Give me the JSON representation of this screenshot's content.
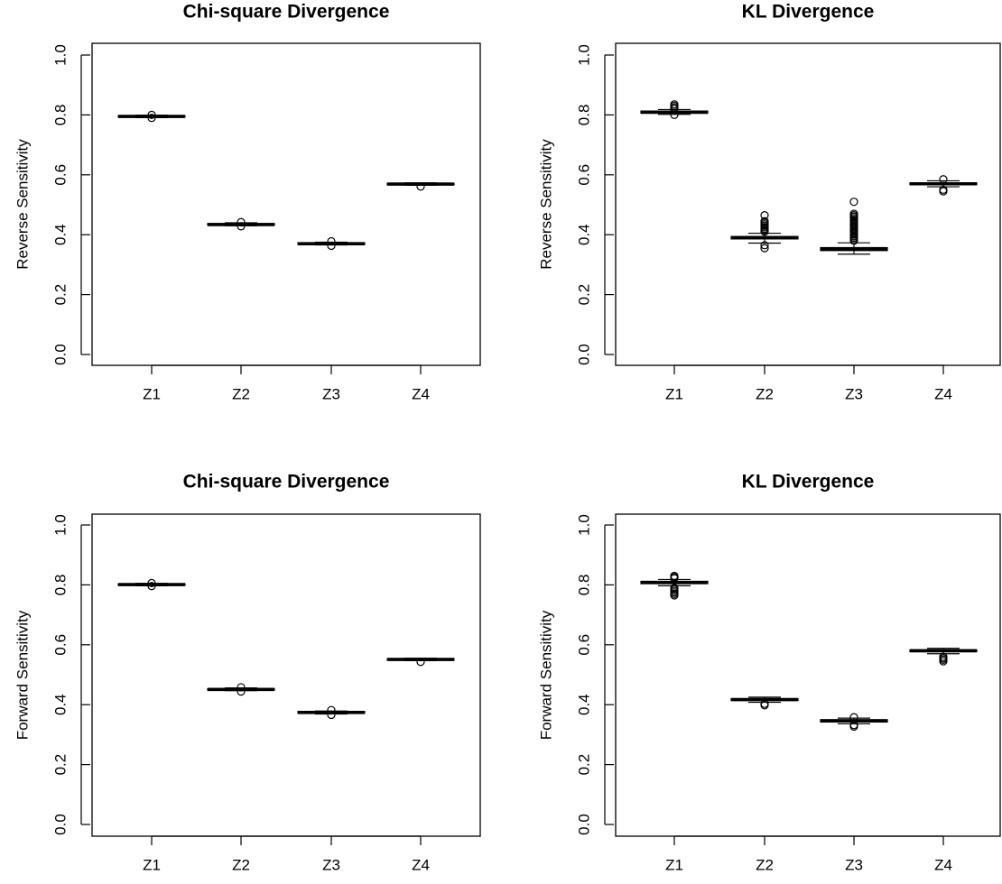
{
  "chart_data": [
    {
      "type": "box",
      "title": "Chi-square Divergence",
      "xlabel": "",
      "ylabel": "Reverse Sensitivity",
      "ylim": [
        0,
        1
      ],
      "yticks": [
        "0.0",
        "0.2",
        "0.4",
        "0.6",
        "0.8",
        "1.0"
      ],
      "categories": [
        "Z1",
        "Z2",
        "Z3",
        "Z4"
      ],
      "boxes": [
        {
          "q1": 0.793,
          "median": 0.795,
          "q3": 0.797,
          "whisker_low": 0.791,
          "whisker_high": 0.799,
          "outliers": [
            0.79,
            0.8
          ]
        },
        {
          "q1": 0.432,
          "median": 0.434,
          "q3": 0.437,
          "whisker_low": 0.43,
          "whisker_high": 0.44,
          "outliers": [
            0.428,
            0.442
          ]
        },
        {
          "q1": 0.368,
          "median": 0.37,
          "q3": 0.373,
          "whisker_low": 0.366,
          "whisker_high": 0.375,
          "outliers": [
            0.363,
            0.378
          ]
        },
        {
          "q1": 0.567,
          "median": 0.569,
          "q3": 0.571,
          "whisker_low": 0.565,
          "whisker_high": 0.573,
          "outliers": [
            0.561
          ]
        }
      ]
    },
    {
      "type": "box",
      "title": "KL Divergence",
      "xlabel": "",
      "ylabel": "Reverse Sensitivity",
      "ylim": [
        0,
        1
      ],
      "yticks": [
        "0.0",
        "0.2",
        "0.4",
        "0.6",
        "0.8",
        "1.0"
      ],
      "categories": [
        "Z1",
        "Z2",
        "Z3",
        "Z4"
      ],
      "boxes": [
        {
          "q1": 0.806,
          "median": 0.809,
          "q3": 0.813,
          "whisker_low": 0.802,
          "whisker_high": 0.818,
          "outliers": [
            0.8,
            0.82,
            0.825,
            0.83,
            0.835
          ]
        },
        {
          "q1": 0.386,
          "median": 0.39,
          "q3": 0.394,
          "whisker_low": 0.372,
          "whisker_high": 0.405,
          "outliers": [
            0.355,
            0.365,
            0.41,
            0.415,
            0.42,
            0.425,
            0.43,
            0.435,
            0.44,
            0.445,
            0.465
          ]
        },
        {
          "q1": 0.347,
          "median": 0.352,
          "q3": 0.357,
          "whisker_low": 0.335,
          "whisker_high": 0.373,
          "outliers": [
            0.38,
            0.385,
            0.39,
            0.395,
            0.4,
            0.405,
            0.41,
            0.415,
            0.42,
            0.425,
            0.43,
            0.435,
            0.44,
            0.445,
            0.45,
            0.455,
            0.46,
            0.465,
            0.47,
            0.51
          ]
        },
        {
          "q1": 0.567,
          "median": 0.57,
          "q3": 0.573,
          "whisker_low": 0.56,
          "whisker_high": 0.58,
          "outliers": [
            0.545,
            0.55,
            0.585
          ]
        }
      ]
    },
    {
      "type": "box",
      "title": "Chi-square Divergence",
      "xlabel": "",
      "ylabel": "Forward Sensitivity",
      "ylim": [
        0,
        1
      ],
      "yticks": [
        "0.0",
        "0.2",
        "0.4",
        "0.6",
        "0.8",
        "1.0"
      ],
      "categories": [
        "Z1",
        "Z2",
        "Z3",
        "Z4"
      ],
      "boxes": [
        {
          "q1": 0.799,
          "median": 0.801,
          "q3": 0.803,
          "whisker_low": 0.797,
          "whisker_high": 0.805,
          "outliers": [
            0.796,
            0.806
          ]
        },
        {
          "q1": 0.449,
          "median": 0.451,
          "q3": 0.453,
          "whisker_low": 0.447,
          "whisker_high": 0.456,
          "outliers": [
            0.444,
            0.458
          ]
        },
        {
          "q1": 0.372,
          "median": 0.374,
          "q3": 0.377,
          "whisker_low": 0.369,
          "whisker_high": 0.379,
          "outliers": [
            0.366,
            0.382
          ]
        },
        {
          "q1": 0.549,
          "median": 0.551,
          "q3": 0.553,
          "whisker_low": 0.547,
          "whisker_high": 0.555,
          "outliers": [
            0.543
          ]
        }
      ]
    },
    {
      "type": "box",
      "title": "KL Divergence",
      "xlabel": "",
      "ylabel": "Forward Sensitivity",
      "ylim": [
        0,
        1
      ],
      "yticks": [
        "0.0",
        "0.2",
        "0.4",
        "0.6",
        "0.8",
        "1.0"
      ],
      "categories": [
        "Z1",
        "Z2",
        "Z3",
        "Z4"
      ],
      "boxes": [
        {
          "q1": 0.804,
          "median": 0.808,
          "q3": 0.812,
          "whisker_low": 0.797,
          "whisker_high": 0.818,
          "outliers": [
            0.765,
            0.77,
            0.775,
            0.78,
            0.785,
            0.79,
            0.822,
            0.826,
            0.83
          ]
        },
        {
          "q1": 0.414,
          "median": 0.417,
          "q3": 0.42,
          "whisker_low": 0.408,
          "whisker_high": 0.425,
          "outliers": [
            0.398,
            0.403
          ]
        },
        {
          "q1": 0.342,
          "median": 0.346,
          "q3": 0.35,
          "whisker_low": 0.336,
          "whisker_high": 0.355,
          "outliers": [
            0.327,
            0.332,
            0.358
          ]
        },
        {
          "q1": 0.577,
          "median": 0.58,
          "q3": 0.583,
          "whisker_low": 0.57,
          "whisker_high": 0.588,
          "outliers": [
            0.545,
            0.55,
            0.555,
            0.56
          ]
        }
      ]
    }
  ]
}
